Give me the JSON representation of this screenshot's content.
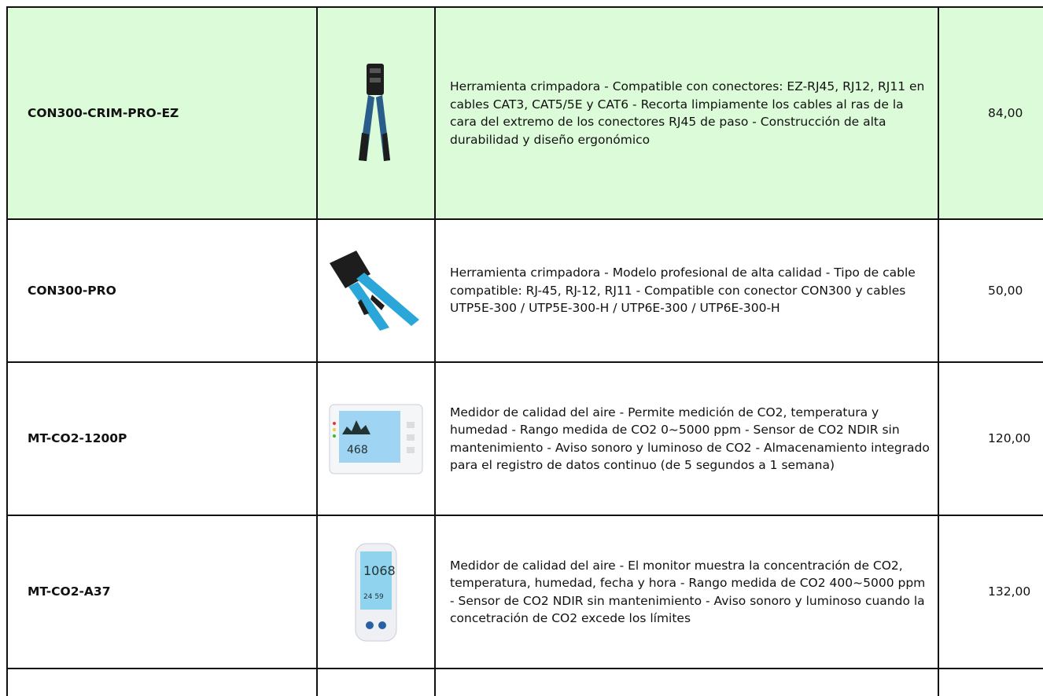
{
  "table": {
    "rows": [
      {
        "code": "CON300-CRIM-PRO-EZ",
        "description": "Herramienta crimpadora - Compatible con conectores: EZ-RJ45, RJ12, RJ11 en cables CAT3, CAT5/5E y CAT6 - Recorta limpiamente los cables al ras de la cara del extremo de los conectores RJ45 de paso  - Construcción de alta durabilidad y diseño ergonómico",
        "price": "84,00"
      },
      {
        "code": "CON300-PRO",
        "description": "Herramienta crimpadora - Modelo profesional de alta calidad - Tipo de cable compatible: RJ-45, RJ-12, RJ11 - Compatible con conector CON300 y cables UTP5E-300 / UTP5E-300-H / UTP6E-300 / UTP6E-300-H",
        "price": "50,00"
      },
      {
        "code": "MT-CO2-1200P",
        "description": "Medidor de calidad del aire - Permite medición de CO2, temperatura y humedad - Rango medida de CO2 0~5000 ppm - Sensor de CO2 NDIR sin mantenimiento - Aviso sonoro y luminoso de CO2 - Almacenamiento integrado para el registro de datos continuo (de 5 segundos a 1 semana)",
        "price": "120,00"
      },
      {
        "code": "MT-CO2-A37",
        "description": "Medidor de calidad del aire - El monitor muestra la concentración de CO2, temperatura, humedad, fecha y hora - Rango medida de CO2 400~5000 ppm - Sensor de CO2 NDIR sin mantenimiento - Aviso sonoro y luminoso cuando la concetración de CO2 excede los límites",
        "price": "132,00"
      }
    ]
  }
}
